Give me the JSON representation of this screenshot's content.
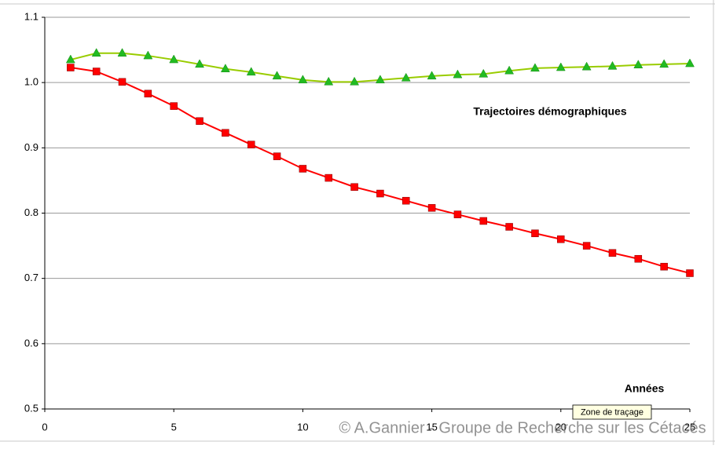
{
  "chart_data": {
    "type": "line",
    "title": "Trajectoires démographiques",
    "x_label": "Années",
    "tooltip": "Zone de traçage",
    "watermark": "© A.Gannier - Groupe de Recherche sur les Cétacés",
    "x": [
      1,
      2,
      3,
      4,
      5,
      6,
      7,
      8,
      9,
      10,
      11,
      12,
      13,
      14,
      15,
      16,
      17,
      18,
      19,
      20,
      21,
      22,
      23,
      24,
      25
    ],
    "series": [
      {
        "color": "#ff0000",
        "marker": "square",
        "values": [
          1.023,
          1.017,
          1.001,
          0.983,
          0.964,
          0.941,
          0.923,
          0.905,
          0.887,
          0.868,
          0.854,
          0.84,
          0.83,
          0.819,
          0.808,
          0.798,
          0.788,
          0.779,
          0.769,
          0.76,
          0.75,
          0.739,
          0.73,
          0.718,
          0.708
        ]
      },
      {
        "color": "#99cc00",
        "marker_color": "#22bb22",
        "marker": "triangle",
        "values": [
          1.035,
          1.045,
          1.045,
          1.041,
          1.035,
          1.028,
          1.021,
          1.016,
          1.01,
          1.004,
          1.001,
          1.001,
          1.004,
          1.007,
          1.01,
          1.012,
          1.013,
          1.018,
          1.022,
          1.023,
          1.024,
          1.025,
          1.027,
          1.028,
          1.029
        ]
      }
    ],
    "xlim": [
      0,
      25
    ],
    "xticks": [
      0,
      5,
      10,
      15,
      20,
      25
    ],
    "ylim": [
      0.5,
      1.1
    ],
    "yticks": [
      0.5,
      0.6,
      0.7,
      0.8,
      0.9,
      {
        "value": 1,
        "label": "1.0"
      },
      1.1
    ],
    "grid": true
  }
}
